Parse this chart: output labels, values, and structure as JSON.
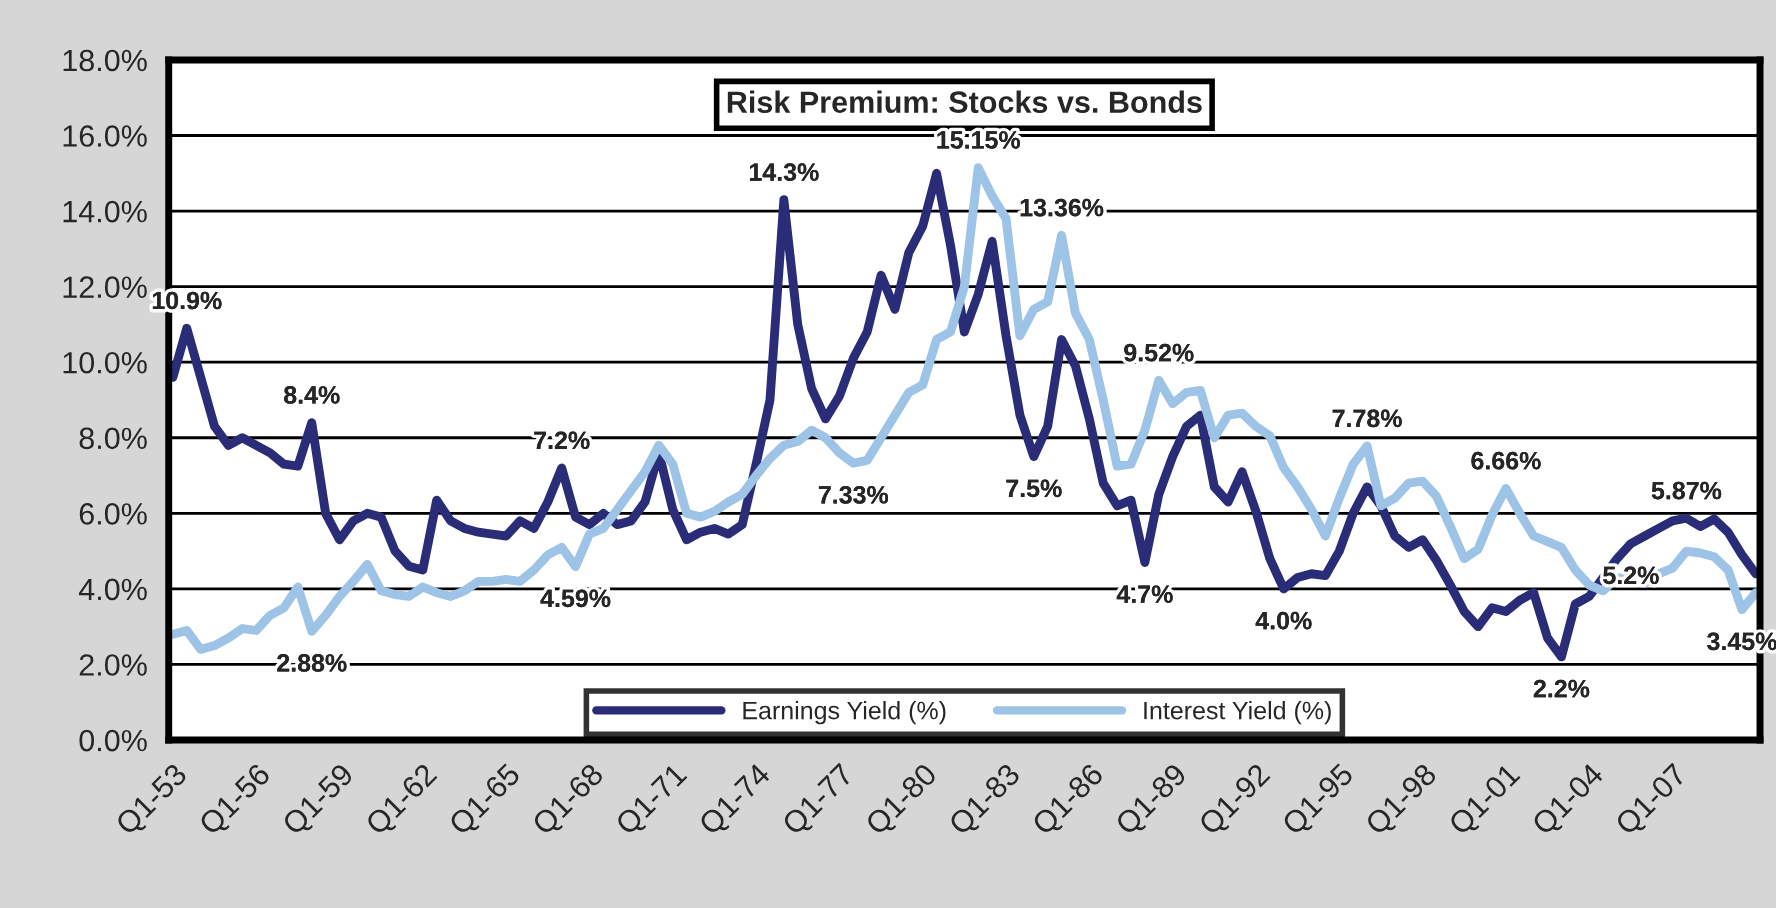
{
  "chart_data": {
    "type": "line",
    "title": "Risk Premium: Stocks vs. Bonds",
    "categories": [
      "Q1-53",
      null,
      null,
      null,
      null,
      null,
      "Q1-56",
      null,
      null,
      null,
      null,
      null,
      "Q1-59",
      null,
      null,
      null,
      null,
      null,
      "Q1-62",
      null,
      null,
      null,
      null,
      null,
      "Q1-65",
      null,
      null,
      null,
      null,
      null,
      "Q1-68",
      null,
      null,
      null,
      null,
      null,
      "Q1-71",
      null,
      null,
      null,
      null,
      null,
      "Q1-74",
      null,
      null,
      null,
      null,
      null,
      "Q1-77",
      null,
      null,
      null,
      null,
      null,
      "Q1-80",
      null,
      null,
      null,
      null,
      null,
      "Q1-83",
      null,
      null,
      null,
      null,
      null,
      "Q1-86",
      null,
      null,
      null,
      null,
      null,
      "Q1-89",
      null,
      null,
      null,
      null,
      null,
      "Q1-92",
      null,
      null,
      null,
      null,
      null,
      "Q1-95",
      null,
      null,
      null,
      null,
      null,
      "Q1-98",
      null,
      null,
      null,
      null,
      null,
      "Q1-01",
      null,
      null,
      null,
      null,
      null,
      "Q1-04",
      null,
      null,
      null,
      null,
      null,
      "Q1-07",
      null,
      null,
      null,
      null,
      null,
      null
    ],
    "ylim": [
      0,
      18
    ],
    "yticks": [
      {
        "value": 0,
        "label": "0.0%"
      },
      {
        "value": 2,
        "label": "2.0%"
      },
      {
        "value": 4,
        "label": "4.0%"
      },
      {
        "value": 6,
        "label": "6.0%"
      },
      {
        "value": 8,
        "label": "8.0%"
      },
      {
        "value": 10,
        "label": "10.0%"
      },
      {
        "value": 12,
        "label": "12.0%"
      },
      {
        "value": 14,
        "label": "14.0%"
      },
      {
        "value": 16,
        "label": "16.0%"
      },
      {
        "value": 18,
        "label": "18.0%"
      }
    ],
    "grid": "y",
    "legend": "bottom",
    "series": [
      {
        "name": "Earnings Yield (%)",
        "color": "#2b2c78",
        "values": [
          9.6,
          10.9,
          9.6,
          8.3,
          7.8,
          8.0,
          7.8,
          7.6,
          7.3,
          7.25,
          8.4,
          6.0,
          5.3,
          5.8,
          6.0,
          5.9,
          5.0,
          4.6,
          4.5,
          6.35,
          5.8,
          5.6,
          5.5,
          5.45,
          5.4,
          5.8,
          5.6,
          6.3,
          7.2,
          5.9,
          5.7,
          6.0,
          5.7,
          5.8,
          6.3,
          7.6,
          6.1,
          5.3,
          5.5,
          5.6,
          5.45,
          5.7,
          7.3,
          9.0,
          14.3,
          11.0,
          9.3,
          8.5,
          9.1,
          10.1,
          10.8,
          12.3,
          11.4,
          12.9,
          13.6,
          15.0,
          13.1,
          10.8,
          11.8,
          13.2,
          10.7,
          8.6,
          7.5,
          8.3,
          10.6,
          9.9,
          8.5,
          6.8,
          6.2,
          6.35,
          4.7,
          6.5,
          7.5,
          8.3,
          8.6,
          6.7,
          6.3,
          7.1,
          6.05,
          4.8,
          4.0,
          4.3,
          4.4,
          4.35,
          5.0,
          6.0,
          6.7,
          6.2,
          5.4,
          5.1,
          5.3,
          4.75,
          4.1,
          3.4,
          3.0,
          3.5,
          3.4,
          3.7,
          3.9,
          2.7,
          2.2,
          3.6,
          3.8,
          4.3,
          4.8,
          5.2,
          5.4,
          5.6,
          5.8,
          5.87,
          5.65,
          5.85,
          5.5,
          4.9,
          4.4
        ]
      },
      {
        "name": "Interest Yield (%)",
        "color": "#9dc3e6",
        "values": [
          2.8,
          2.9,
          2.4,
          2.5,
          2.7,
          2.95,
          2.9,
          3.3,
          3.5,
          4.05,
          2.88,
          3.3,
          3.8,
          4.2,
          4.65,
          3.95,
          3.85,
          3.8,
          4.05,
          3.9,
          3.8,
          3.95,
          4.2,
          4.2,
          4.25,
          4.2,
          4.5,
          4.9,
          5.1,
          4.59,
          5.45,
          5.6,
          6.1,
          6.6,
          7.1,
          7.8,
          7.3,
          6.0,
          5.9,
          6.05,
          6.3,
          6.5,
          7.0,
          7.45,
          7.8,
          7.9,
          8.2,
          8.0,
          7.6,
          7.33,
          7.4,
          8.0,
          8.6,
          9.2,
          9.4,
          10.6,
          10.8,
          12.0,
          15.15,
          14.4,
          13.8,
          10.7,
          11.4,
          11.6,
          13.36,
          11.3,
          10.6,
          9.0,
          7.25,
          7.3,
          8.2,
          9.52,
          8.9,
          9.2,
          9.25,
          8.0,
          8.6,
          8.65,
          8.3,
          8.05,
          7.2,
          6.7,
          6.1,
          5.4,
          6.4,
          7.3,
          7.78,
          6.2,
          6.4,
          6.8,
          6.85,
          6.45,
          5.65,
          4.8,
          5.05,
          5.95,
          6.66,
          6.0,
          5.4,
          5.25,
          5.1,
          4.5,
          4.1,
          3.95,
          4.3,
          4.25,
          4.15,
          4.4,
          4.55,
          5.0,
          4.95,
          4.85,
          4.5,
          3.45,
          3.9
        ]
      }
    ],
    "annotations": [
      {
        "text": "10.9%",
        "y": 10.9
      },
      {
        "text": "8.4%",
        "y": 8.4
      },
      {
        "text": "2.88%",
        "y": 2.88
      },
      {
        "text": "7.2%",
        "y": 7.2
      },
      {
        "text": "4.59%",
        "y": 4.59
      },
      {
        "text": "14.3%",
        "y": 14.3
      },
      {
        "text": "7.33%",
        "y": 7.33
      },
      {
        "text": "15.15%",
        "y": 15.15
      },
      {
        "text": "7.5%",
        "y": 7.5
      },
      {
        "text": "13.36%",
        "y": 13.36
      },
      {
        "text": "4.7%",
        "y": 4.7
      },
      {
        "text": "9.52%",
        "y": 9.52
      },
      {
        "text": "4.0%",
        "y": 4.0
      },
      {
        "text": "7.78%",
        "y": 7.78
      },
      {
        "text": "6.66%",
        "y": 6.66
      },
      {
        "text": "2.2%",
        "y": 2.2
      },
      {
        "text": "5.2%",
        "y": 5.2
      },
      {
        "text": "5.87%",
        "y": 5.87
      },
      {
        "text": "3.45%",
        "y": 3.45
      }
    ]
  }
}
